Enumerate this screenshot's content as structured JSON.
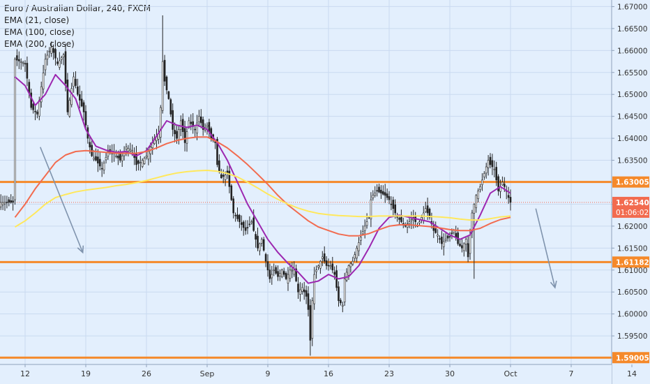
{
  "colors": {
    "background": "#e3effd",
    "grid": "#c9daf0",
    "candle_up": "#ffffff",
    "candle_down": "#222222",
    "wick": "#222222",
    "ema21": "#9c27b0",
    "ema100": "#f26b4f",
    "ema200": "#ffe85c",
    "level": "#f5892a",
    "arrow": "#7f93ad",
    "axis_text": "#333333",
    "price_tag": "#f5892a",
    "last_price_tag": "#f26b4f"
  },
  "legend": {
    "title": "Euro / Australian Dollar, 240, FXCM",
    "ema21": "EMA (21, close)",
    "ema100": "EMA (100, close)",
    "ema200": "EMA (200, close)"
  },
  "chart_data": {
    "type": "candlestick",
    "symbol": "Euro / Australian Dollar",
    "timeframe": "240",
    "source": "FXCM",
    "ylim": [
      1.5885,
      1.6715
    ],
    "y_ticks": [
      "1.67000",
      "1.66500",
      "1.66000",
      "1.65500",
      "1.65000",
      "1.64500",
      "1.64000",
      "1.63500",
      "1.63000",
      "1.62500",
      "1.62000",
      "1.61500",
      "1.61000",
      "1.60500",
      "1.60000",
      "1.59500",
      "1.59000"
    ],
    "x_ticks": [
      {
        "label": "12",
        "bar": 0
      },
      {
        "label": "19",
        "bar": 30
      },
      {
        "label": "26",
        "bar": 60
      },
      {
        "label": "Sep",
        "bar": 90
      },
      {
        "label": "9",
        "bar": 120
      },
      {
        "label": "16",
        "bar": 150
      },
      {
        "label": "23",
        "bar": 180
      },
      {
        "label": "30",
        "bar": 210
      },
      {
        "label": "Oct",
        "bar": 240
      },
      {
        "label": "7",
        "bar": 270
      },
      {
        "label": "14",
        "bar": 300
      }
    ],
    "horizontal_levels": [
      {
        "label": "1.63005",
        "value": 1.63005
      },
      {
        "label": "1.61182",
        "value": 1.61182
      },
      {
        "label": "1.59005",
        "value": 1.59005
      }
    ],
    "last_price": {
      "label": "1.62540",
      "value": 1.6254
    },
    "countdown": "01:06:02",
    "arrows": [
      {
        "from": {
          "bar": 7.5,
          "price": 1.638
        },
        "to": {
          "bar": 28.5,
          "price": 1.614
        }
      },
      {
        "from": {
          "bar": 252.5,
          "price": 1.624
        },
        "to": {
          "bar": 262,
          "price": 1.606
        }
      }
    ],
    "price_path": [
      [
        -5,
        1.658
      ],
      [
        0,
        1.657
      ],
      [
        3,
        1.647
      ],
      [
        6,
        1.6455
      ],
      [
        10,
        1.658
      ],
      [
        13,
        1.6608
      ],
      [
        16,
        1.657
      ],
      [
        19,
        1.659
      ],
      [
        21,
        1.646
      ],
      [
        24,
        1.654
      ],
      [
        26,
        1.65
      ],
      [
        29,
        1.646
      ],
      [
        31,
        1.64
      ],
      [
        33,
        1.636
      ],
      [
        35,
        1.635
      ],
      [
        38,
        1.633
      ],
      [
        41,
        1.637
      ],
      [
        44,
        1.6365
      ],
      [
        47,
        1.635
      ],
      [
        50,
        1.638
      ],
      [
        53,
        1.6372
      ],
      [
        55,
        1.634
      ],
      [
        57,
        1.6345
      ],
      [
        60,
        1.636
      ],
      [
        62,
        1.638
      ],
      [
        64,
        1.64
      ],
      [
        66,
        1.641
      ],
      [
        67,
        1.647
      ],
      [
        68,
        1.6575
      ],
      [
        69,
        1.653
      ],
      [
        71,
        1.649
      ],
      [
        73,
        1.642
      ],
      [
        75,
        1.64
      ],
      [
        77,
        1.644
      ],
      [
        79,
        1.639
      ],
      [
        81,
        1.644
      ],
      [
        84,
        1.642
      ],
      [
        86,
        1.645
      ],
      [
        88,
        1.642
      ],
      [
        90,
        1.643
      ],
      [
        92,
        1.64
      ],
      [
        94,
        1.639
      ],
      [
        95,
        1.634
      ],
      [
        97,
        1.631
      ],
      [
        100,
        1.632
      ],
      [
        101,
        1.629
      ],
      [
        103,
        1.623
      ],
      [
        106,
        1.621
      ],
      [
        109,
        1.619
      ],
      [
        112,
        1.621
      ],
      [
        115,
        1.615
      ],
      [
        117,
        1.617
      ],
      [
        119,
        1.612
      ],
      [
        121,
        1.608
      ],
      [
        123,
        1.61
      ],
      [
        125,
        1.6085
      ],
      [
        127,
        1.61
      ],
      [
        129,
        1.608
      ],
      [
        131,
        1.61
      ],
      [
        133,
        1.61
      ],
      [
        135,
        1.605
      ],
      [
        137,
        1.606
      ],
      [
        139,
        1.604
      ],
      [
        140,
        1.601
      ],
      [
        141,
        1.594
      ],
      [
        142,
        1.603
      ],
      [
        143,
        1.609
      ],
      [
        145,
        1.611
      ],
      [
        147,
        1.613
      ],
      [
        149,
        1.611
      ],
      [
        151,
        1.611
      ],
      [
        153,
        1.609
      ],
      [
        154,
        1.606
      ],
      [
        155,
        1.603
      ],
      [
        157,
        1.602
      ],
      [
        158,
        1.608
      ],
      [
        160,
        1.611
      ],
      [
        162,
        1.612
      ],
      [
        164,
        1.615
      ],
      [
        166,
        1.6175
      ],
      [
        168,
        1.62
      ],
      [
        170,
        1.622
      ],
      [
        171,
        1.626
      ],
      [
        172,
        1.627
      ],
      [
        174,
        1.628
      ],
      [
        176,
        1.6275
      ],
      [
        178,
        1.627
      ],
      [
        180,
        1.626
      ],
      [
        182,
        1.624
      ],
      [
        184,
        1.622
      ],
      [
        186,
        1.621
      ],
      [
        188,
        1.62
      ],
      [
        190,
        1.621
      ],
      [
        192,
        1.622
      ],
      [
        194,
        1.62
      ],
      [
        196,
        1.622
      ],
      [
        198,
        1.624
      ],
      [
        200,
        1.622
      ],
      [
        202,
        1.619
      ],
      [
        204,
        1.618
      ],
      [
        206,
        1.616
      ],
      [
        208,
        1.617
      ],
      [
        210,
        1.6175
      ],
      [
        212,
        1.619
      ],
      [
        214,
        1.616
      ],
      [
        216,
        1.615
      ],
      [
        218,
        1.617
      ],
      [
        219,
        1.613
      ],
      [
        220,
        1.618
      ],
      [
        221,
        1.623
      ],
      [
        223,
        1.627
      ],
      [
        225,
        1.629
      ],
      [
        227,
        1.632
      ],
      [
        229,
        1.635
      ],
      [
        230,
        1.634
      ],
      [
        232,
        1.633
      ],
      [
        234,
        1.628
      ],
      [
        236,
        1.63
      ],
      [
        238,
        1.628
      ],
      [
        239,
        1.6265
      ],
      [
        240,
        1.6254
      ]
    ],
    "series": [
      {
        "name": "EMA (21, close)",
        "color": "#9c27b0",
        "points": [
          [
            -5,
            1.654
          ],
          [
            0,
            1.652
          ],
          [
            5,
            1.6475
          ],
          [
            10,
            1.65
          ],
          [
            15,
            1.6545
          ],
          [
            20,
            1.652
          ],
          [
            25,
            1.649
          ],
          [
            30,
            1.642
          ],
          [
            35,
            1.6382
          ],
          [
            40,
            1.6373
          ],
          [
            45,
            1.6368
          ],
          [
            50,
            1.637
          ],
          [
            55,
            1.636
          ],
          [
            60,
            1.6372
          ],
          [
            65,
            1.6405
          ],
          [
            70,
            1.644
          ],
          [
            75,
            1.643
          ],
          [
            80,
            1.6425
          ],
          [
            85,
            1.643
          ],
          [
            90,
            1.642
          ],
          [
            95,
            1.639
          ],
          [
            100,
            1.635
          ],
          [
            105,
            1.63
          ],
          [
            110,
            1.625
          ],
          [
            115,
            1.621
          ],
          [
            120,
            1.617
          ],
          [
            125,
            1.614
          ],
          [
            130,
            1.6115
          ],
          [
            135,
            1.6095
          ],
          [
            140,
            1.607
          ],
          [
            145,
            1.6075
          ],
          [
            150,
            1.609
          ],
          [
            155,
            1.608
          ],
          [
            160,
            1.6085
          ],
          [
            165,
            1.611
          ],
          [
            170,
            1.615
          ],
          [
            175,
            1.6195
          ],
          [
            180,
            1.622
          ],
          [
            185,
            1.6225
          ],
          [
            190,
            1.622
          ],
          [
            195,
            1.6215
          ],
          [
            200,
            1.621
          ],
          [
            205,
            1.6195
          ],
          [
            210,
            1.618
          ],
          [
            215,
            1.617
          ],
          [
            220,
            1.618
          ],
          [
            225,
            1.6225
          ],
          [
            230,
            1.6275
          ],
          [
            235,
            1.629
          ],
          [
            240,
            1.6275
          ]
        ]
      },
      {
        "name": "EMA (100, close)",
        "color": "#f26b4f",
        "points": [
          [
            -5,
            1.622
          ],
          [
            0,
            1.625
          ],
          [
            5,
            1.6285
          ],
          [
            10,
            1.6315
          ],
          [
            15,
            1.6345
          ],
          [
            20,
            1.6362
          ],
          [
            25,
            1.637
          ],
          [
            30,
            1.6372
          ],
          [
            35,
            1.637
          ],
          [
            40,
            1.6368
          ],
          [
            45,
            1.6366
          ],
          [
            50,
            1.6366
          ],
          [
            55,
            1.6366
          ],
          [
            60,
            1.637
          ],
          [
            65,
            1.6378
          ],
          [
            70,
            1.6388
          ],
          [
            75,
            1.6395
          ],
          [
            80,
            1.64
          ],
          [
            85,
            1.6403
          ],
          [
            90,
            1.6403
          ],
          [
            95,
            1.6392
          ],
          [
            100,
            1.6378
          ],
          [
            105,
            1.636
          ],
          [
            110,
            1.634
          ],
          [
            115,
            1.6318
          ],
          [
            120,
            1.6295
          ],
          [
            125,
            1.627
          ],
          [
            130,
            1.6248
          ],
          [
            135,
            1.623
          ],
          [
            140,
            1.6212
          ],
          [
            145,
            1.6198
          ],
          [
            150,
            1.619
          ],
          [
            155,
            1.6182
          ],
          [
            160,
            1.6178
          ],
          [
            165,
            1.6178
          ],
          [
            170,
            1.6183
          ],
          [
            175,
            1.6192
          ],
          [
            180,
            1.62
          ],
          [
            185,
            1.6203
          ],
          [
            190,
            1.6203
          ],
          [
            195,
            1.6201
          ],
          [
            200,
            1.6199
          ],
          [
            205,
            1.6196
          ],
          [
            210,
            1.6192
          ],
          [
            215,
            1.619
          ],
          [
            220,
            1.619
          ],
          [
            225,
            1.6195
          ],
          [
            230,
            1.6206
          ],
          [
            235,
            1.6215
          ],
          [
            240,
            1.622
          ]
        ]
      },
      {
        "name": "EMA (200, close)",
        "color": "#ffe85c",
        "points": [
          [
            -5,
            1.6198
          ],
          [
            0,
            1.6212
          ],
          [
            5,
            1.623
          ],
          [
            10,
            1.625
          ],
          [
            15,
            1.6265
          ],
          [
            20,
            1.6272
          ],
          [
            25,
            1.6278
          ],
          [
            30,
            1.6282
          ],
          [
            35,
            1.6285
          ],
          [
            40,
            1.6288
          ],
          [
            45,
            1.6292
          ],
          [
            50,
            1.6295
          ],
          [
            55,
            1.6299
          ],
          [
            60,
            1.6304
          ],
          [
            65,
            1.631
          ],
          [
            70,
            1.6316
          ],
          [
            75,
            1.6321
          ],
          [
            80,
            1.6324
          ],
          [
            85,
            1.6326
          ],
          [
            90,
            1.6327
          ],
          [
            95,
            1.6325
          ],
          [
            100,
            1.632
          ],
          [
            105,
            1.6312
          ],
          [
            110,
            1.63
          ],
          [
            115,
            1.6287
          ],
          [
            120,
            1.6273
          ],
          [
            125,
            1.6261
          ],
          [
            130,
            1.625
          ],
          [
            135,
            1.6241
          ],
          [
            140,
            1.6234
          ],
          [
            145,
            1.6229
          ],
          [
            150,
            1.6226
          ],
          [
            155,
            1.6224
          ],
          [
            160,
            1.6223
          ],
          [
            165,
            1.6222
          ],
          [
            170,
            1.6222
          ],
          [
            175,
            1.6223
          ],
          [
            180,
            1.6223
          ],
          [
            185,
            1.6223
          ],
          [
            190,
            1.6223
          ],
          [
            195,
            1.6223
          ],
          [
            200,
            1.6222
          ],
          [
            205,
            1.6221
          ],
          [
            210,
            1.6219
          ],
          [
            215,
            1.6216
          ],
          [
            220,
            1.6214
          ],
          [
            225,
            1.6214
          ],
          [
            230,
            1.6217
          ],
          [
            235,
            1.6221
          ],
          [
            240,
            1.6223
          ]
        ]
      }
    ]
  }
}
